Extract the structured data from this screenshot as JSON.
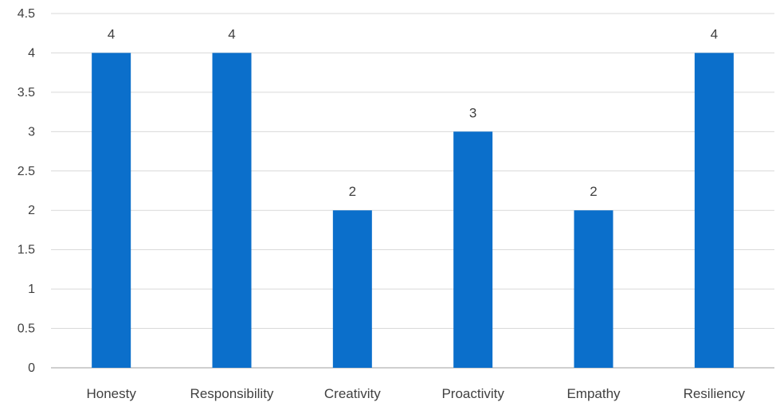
{
  "chart_data": {
    "type": "bar",
    "title": "",
    "xlabel": "",
    "ylabel": "",
    "categories": [
      "Honesty",
      "Responsibility",
      "Creativity",
      "Proactivity",
      "Empathy",
      "Resiliency"
    ],
    "values": [
      4,
      4,
      2,
      3,
      2,
      4
    ],
    "data_labels": [
      "4",
      "4",
      "2",
      "3",
      "2",
      "4"
    ],
    "ylim": [
      0,
      4.5
    ],
    "yticks": [
      0,
      0.5,
      1,
      1.5,
      2,
      2.5,
      3,
      3.5,
      4,
      4.5
    ],
    "ytick_labels": [
      "0",
      "0.5",
      "1",
      "1.5",
      "2",
      "2.5",
      "3",
      "3.5",
      "4",
      "4.5"
    ],
    "grid": true,
    "legend": "none",
    "colors": {
      "bar": "#0b6fcb",
      "grid": "#d9d9d9",
      "axis": "#bfbfbf",
      "text": "#404040"
    }
  }
}
